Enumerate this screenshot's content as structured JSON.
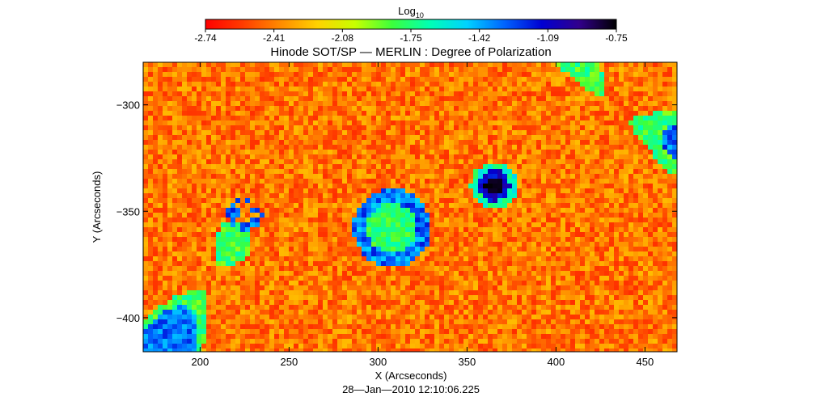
{
  "chart_data": {
    "type": "heatmap",
    "title": "Hinode SOT/SP — MERLIN : Degree of Polarization",
    "colorbar": {
      "label_main": "Log",
      "label_sub": "10",
      "ticks": [
        "-2.74",
        "-2.41",
        "-2.08",
        "-1.75",
        "-1.42",
        "-1.09",
        "-0.75"
      ],
      "range": [
        -2.74,
        -0.75
      ],
      "stops": [
        "#ff0000",
        "#ff3c00",
        "#ff8a00",
        "#ffd200",
        "#c8ff00",
        "#3cff3c",
        "#00ffb4",
        "#00d2ff",
        "#0064ff",
        "#0000d2",
        "#32008c",
        "#000000"
      ]
    },
    "x_axis": {
      "label": "X (Arcseconds)",
      "range": [
        168,
        468
      ],
      "ticks": [
        200,
        250,
        300,
        350,
        400,
        450
      ],
      "tick_labels": [
        "200",
        "250",
        "300",
        "350",
        "400",
        "450"
      ]
    },
    "y_axis": {
      "label": "Y (Arcseconds)",
      "range": [
        -416,
        -280
      ],
      "ticks": [
        -300,
        -350,
        -400
      ],
      "tick_labels": [
        "−300",
        "−350",
        "−400"
      ]
    },
    "timestamp": "28—Jan—2010 12:10:06.225",
    "features": [
      {
        "kind": "sunspot",
        "x": 365,
        "y": -338,
        "value": -0.8
      },
      {
        "kind": "plage",
        "x": 308,
        "y": -358,
        "value": -1.75
      },
      {
        "kind": "network",
        "x": 225,
        "y": -352,
        "value": -1.4
      }
    ]
  }
}
